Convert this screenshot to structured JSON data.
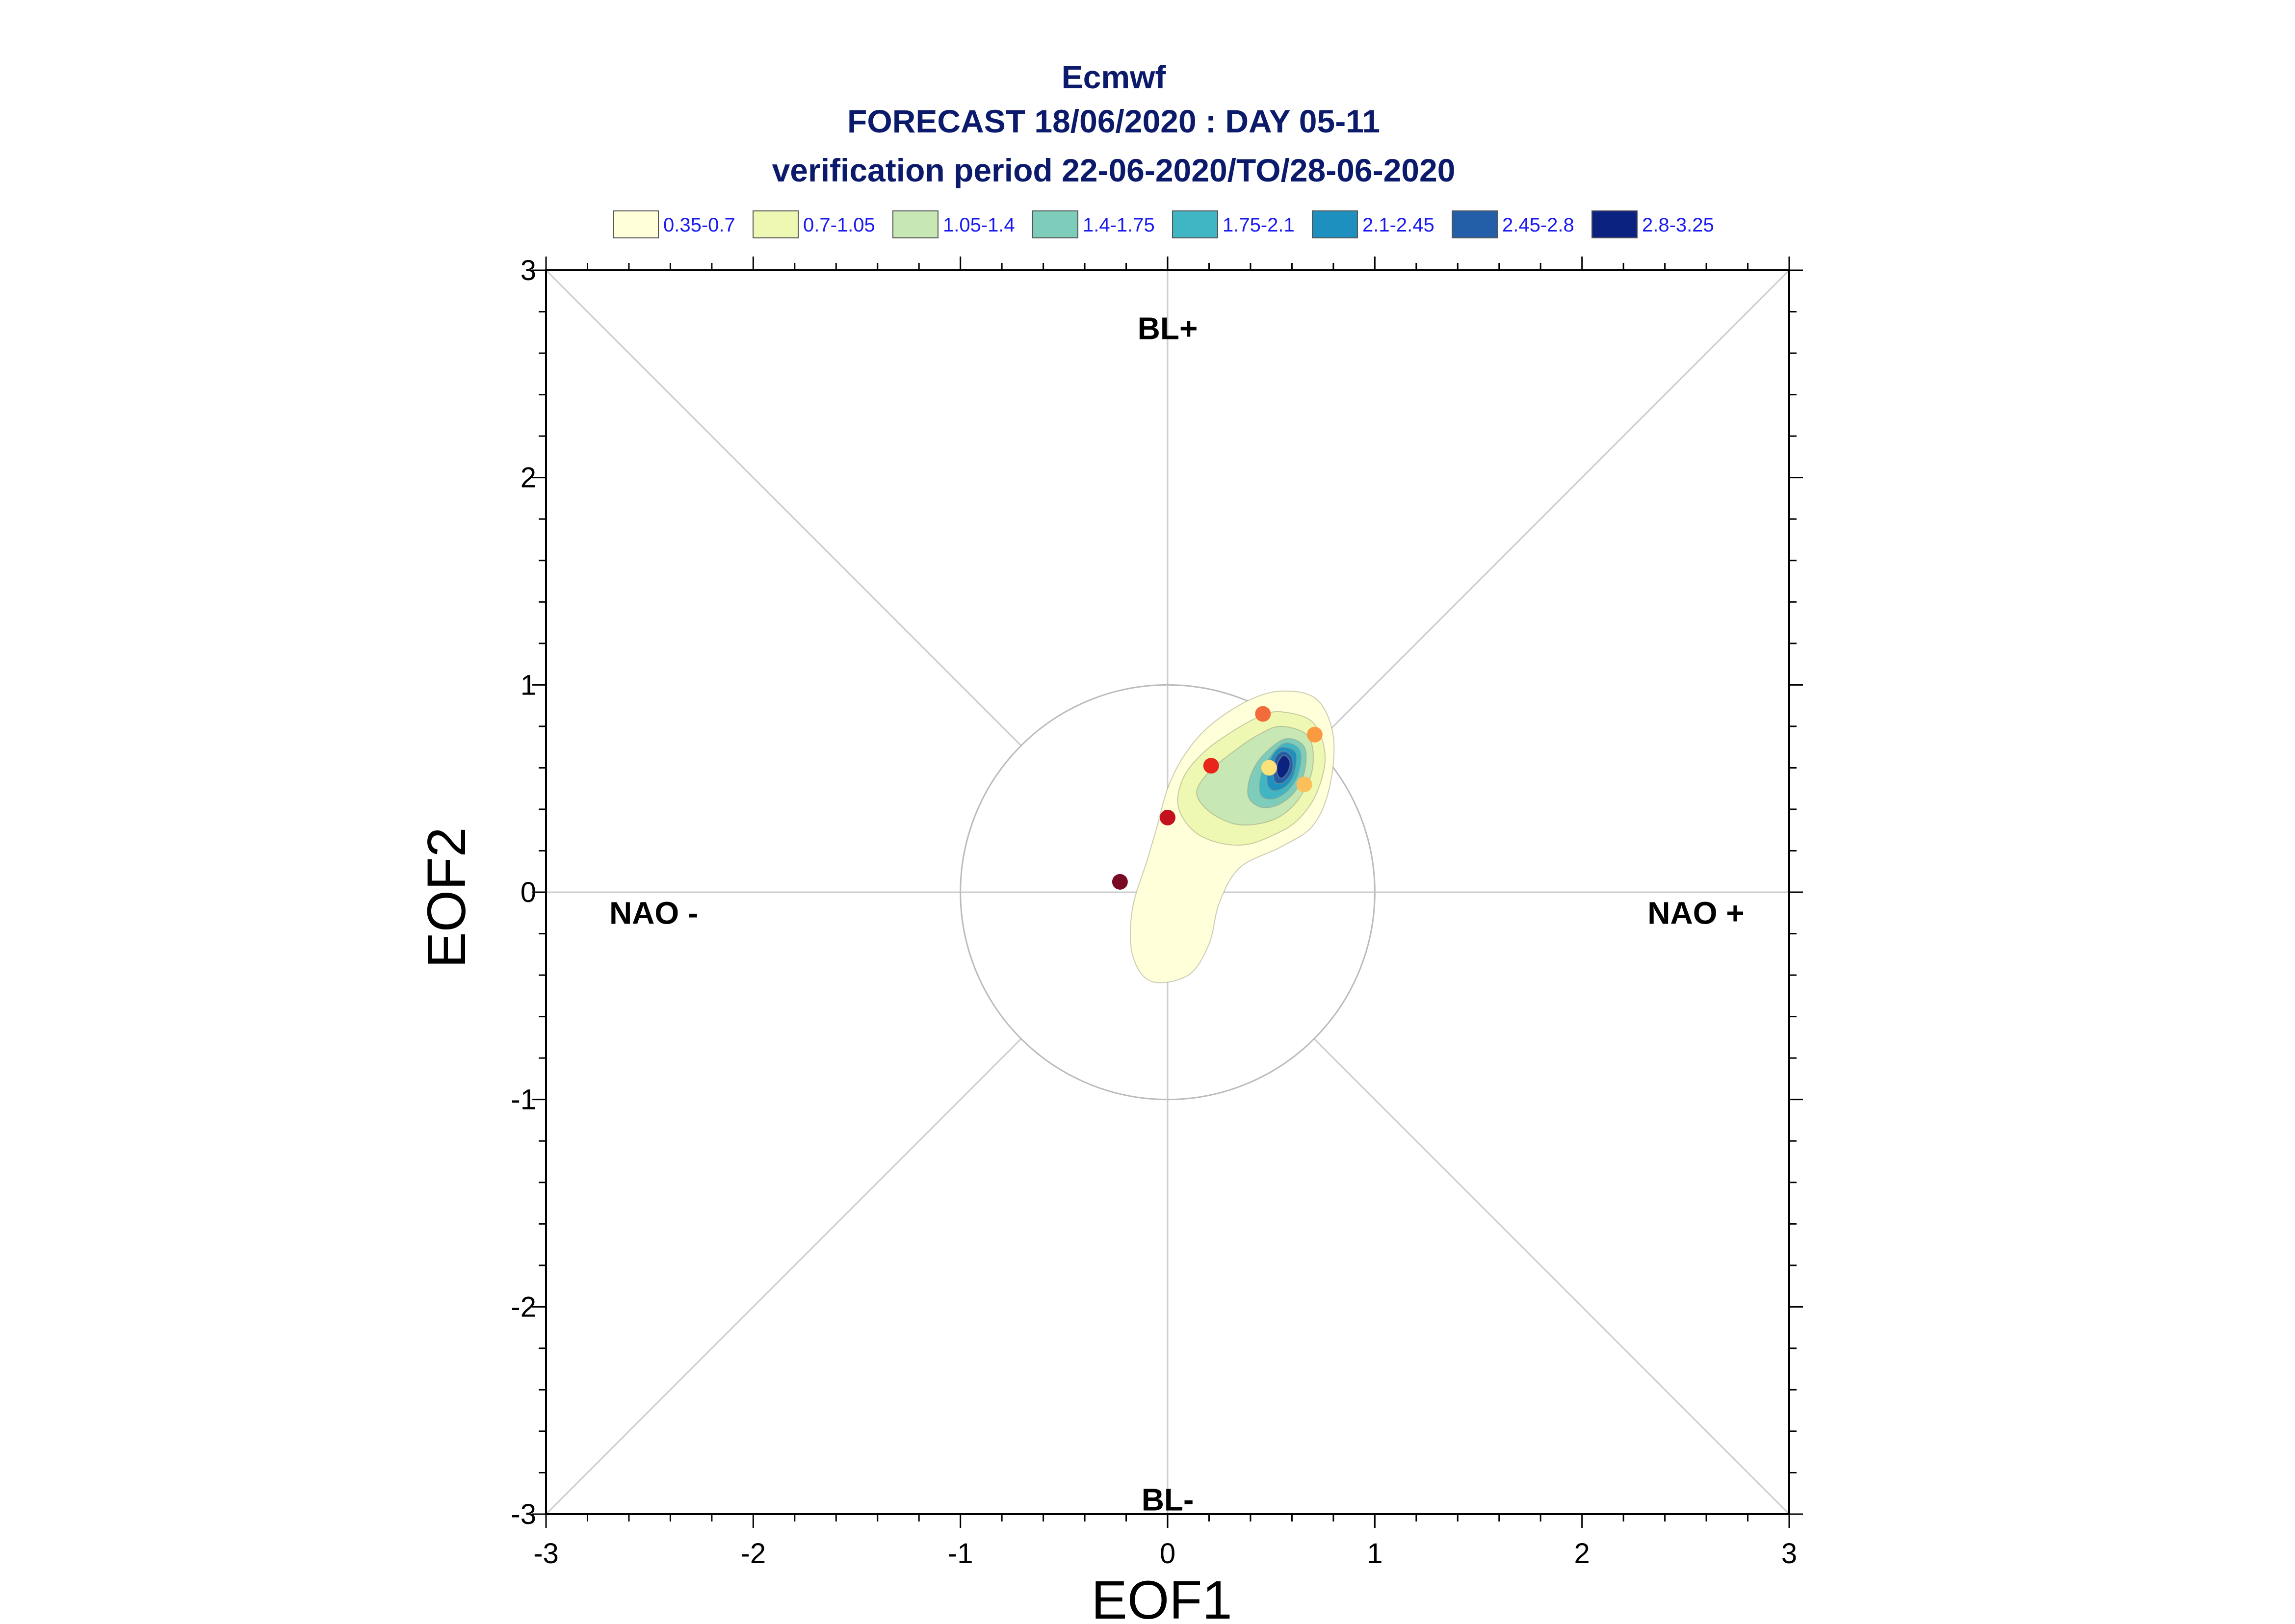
{
  "chart_data": {
    "type": "scatter",
    "title_lines": [
      "Ecmwf",
      "FORECAST 18/06/2020 : DAY 05-11",
      "verification period 22-06-2020/TO/28-06-2020"
    ],
    "xlabel": "EOF1",
    "ylabel": "EOF2",
    "xlim": [
      -3,
      3
    ],
    "ylim": [
      -3,
      3
    ],
    "x_ticks": [
      "-3",
      "-2",
      "-1",
      "0",
      "1",
      "2",
      "3"
    ],
    "y_ticks": [
      "-3",
      "-2",
      "-1",
      "0",
      "1",
      "2",
      "3"
    ],
    "grid": false,
    "reference_circle_radius": 1,
    "legend": {
      "placement": "top",
      "entries": [
        {
          "label": "0.35-0.7",
          "color": "#ffffd9"
        },
        {
          "label": "0.7-1.05",
          "color": "#eef8b2"
        },
        {
          "label": "1.05-1.4",
          "color": "#c7e8b4"
        },
        {
          "label": "1.4-1.75",
          "color": "#7ecdbb"
        },
        {
          "label": "1.75-2.1",
          "color": "#40b6c4"
        },
        {
          "label": "2.1-2.45",
          "color": "#1e90c0"
        },
        {
          "label": "2.45-2.8",
          "color": "#235ea8"
        },
        {
          "label": "2.8-3.25",
          "color": "#0c2280"
        }
      ]
    },
    "regime_labels": [
      {
        "text": "BL+",
        "x": 0.0,
        "y": 2.72
      },
      {
        "text": "BL-",
        "x": 0.0,
        "y": -2.93
      },
      {
        "text": "NAO -",
        "x": -2.48,
        "y": -0.1
      },
      {
        "text": "NAO +",
        "x": 2.55,
        "y": -0.1
      }
    ],
    "density_contours": [
      {
        "level": "0.35-0.7",
        "color": "#ffffd9",
        "points": [
          [
            0.55,
            0.97
          ],
          [
            0.72,
            0.93
          ],
          [
            0.8,
            0.75
          ],
          [
            0.78,
            0.5
          ],
          [
            0.7,
            0.32
          ],
          [
            0.55,
            0.22
          ],
          [
            0.35,
            0.12
          ],
          [
            0.25,
            -0.05
          ],
          [
            0.2,
            -0.25
          ],
          [
            0.1,
            -0.4
          ],
          [
            -0.08,
            -0.43
          ],
          [
            -0.17,
            -0.3
          ],
          [
            -0.17,
            -0.08
          ],
          [
            -0.1,
            0.15
          ],
          [
            -0.05,
            0.32
          ],
          [
            0.0,
            0.5
          ],
          [
            0.08,
            0.66
          ],
          [
            0.2,
            0.8
          ],
          [
            0.38,
            0.92
          ]
        ]
      },
      {
        "level": "0.7-1.05",
        "color": "#eef8b2",
        "points": [
          [
            0.55,
            0.87
          ],
          [
            0.7,
            0.82
          ],
          [
            0.76,
            0.66
          ],
          [
            0.72,
            0.48
          ],
          [
            0.63,
            0.35
          ],
          [
            0.52,
            0.28
          ],
          [
            0.38,
            0.23
          ],
          [
            0.24,
            0.24
          ],
          [
            0.12,
            0.3
          ],
          [
            0.05,
            0.42
          ],
          [
            0.08,
            0.56
          ],
          [
            0.18,
            0.68
          ],
          [
            0.32,
            0.78
          ],
          [
            0.45,
            0.85
          ]
        ]
      },
      {
        "level": "1.05-1.4",
        "color": "#c7e8b4",
        "points": [
          [
            0.55,
            0.8
          ],
          [
            0.68,
            0.75
          ],
          [
            0.7,
            0.6
          ],
          [
            0.64,
            0.46
          ],
          [
            0.55,
            0.37
          ],
          [
            0.44,
            0.33
          ],
          [
            0.32,
            0.33
          ],
          [
            0.2,
            0.39
          ],
          [
            0.14,
            0.48
          ],
          [
            0.2,
            0.58
          ],
          [
            0.32,
            0.68
          ],
          [
            0.44,
            0.76
          ]
        ]
      },
      {
        "level": "1.4-1.75",
        "color": "#7ecdbb",
        "points": [
          [
            0.57,
            0.74
          ],
          [
            0.66,
            0.7
          ],
          [
            0.66,
            0.58
          ],
          [
            0.61,
            0.48
          ],
          [
            0.53,
            0.42
          ],
          [
            0.45,
            0.41
          ],
          [
            0.39,
            0.46
          ],
          [
            0.4,
            0.56
          ],
          [
            0.46,
            0.66
          ]
        ]
      },
      {
        "level": "1.75-2.1",
        "color": "#40b6c4",
        "points": [
          [
            0.57,
            0.72
          ],
          [
            0.64,
            0.68
          ],
          [
            0.63,
            0.57
          ],
          [
            0.58,
            0.49
          ],
          [
            0.51,
            0.45
          ],
          [
            0.45,
            0.47
          ],
          [
            0.45,
            0.56
          ],
          [
            0.5,
            0.66
          ]
        ]
      },
      {
        "level": "2.1-2.45",
        "color": "#1e90c0",
        "points": [
          [
            0.56,
            0.7
          ],
          [
            0.62,
            0.67
          ],
          [
            0.61,
            0.57
          ],
          [
            0.57,
            0.51
          ],
          [
            0.51,
            0.49
          ],
          [
            0.48,
            0.53
          ],
          [
            0.49,
            0.62
          ],
          [
            0.52,
            0.68
          ]
        ]
      },
      {
        "level": "2.45-2.8",
        "color": "#235ea8",
        "points": [
          [
            0.56,
            0.68
          ],
          [
            0.6,
            0.65
          ],
          [
            0.6,
            0.58
          ],
          [
            0.56,
            0.53
          ],
          [
            0.52,
            0.53
          ],
          [
            0.51,
            0.58
          ],
          [
            0.52,
            0.65
          ]
        ]
      },
      {
        "level": "2.8-3.25",
        "color": "#0c2280",
        "points": [
          [
            0.56,
            0.66
          ],
          [
            0.59,
            0.63
          ],
          [
            0.58,
            0.58
          ],
          [
            0.55,
            0.55
          ],
          [
            0.53,
            0.57
          ],
          [
            0.53,
            0.62
          ]
        ]
      }
    ],
    "points": [
      {
        "x": -0.23,
        "y": 0.05,
        "color": "#7a0a24"
      },
      {
        "x": 0.0,
        "y": 0.36,
        "color": "#c5111e"
      },
      {
        "x": 0.21,
        "y": 0.61,
        "color": "#e8261c"
      },
      {
        "x": 0.46,
        "y": 0.86,
        "color": "#f26b3a"
      },
      {
        "x": 0.71,
        "y": 0.76,
        "color": "#f99a40"
      },
      {
        "x": 0.66,
        "y": 0.52,
        "color": "#fcbf5a"
      },
      {
        "x": 0.49,
        "y": 0.6,
        "color": "#fbe17a"
      }
    ]
  }
}
